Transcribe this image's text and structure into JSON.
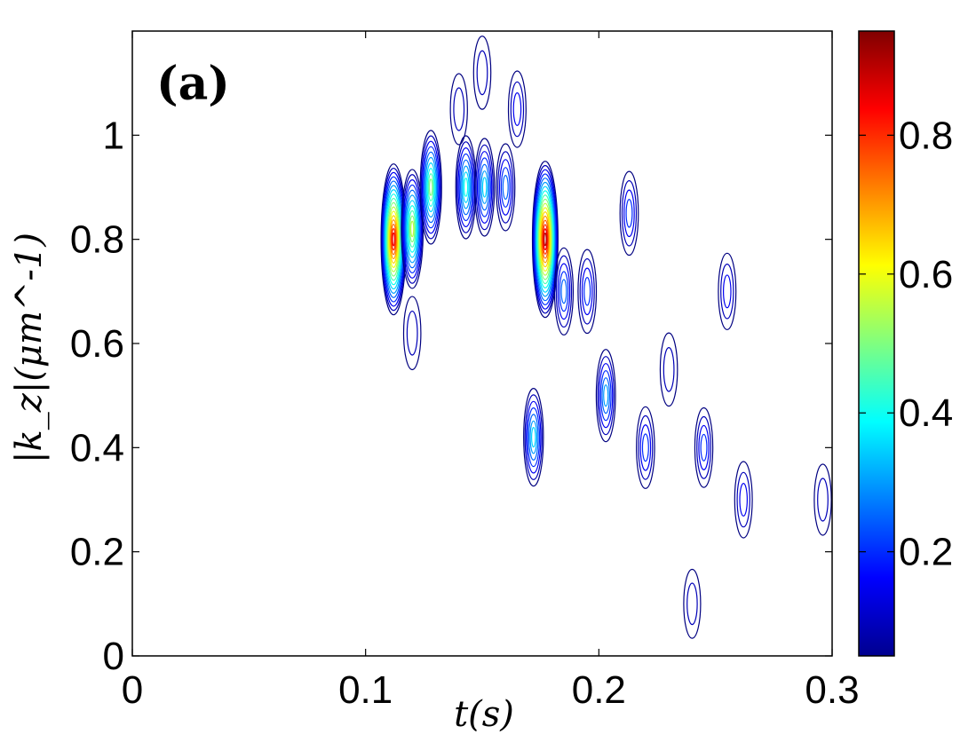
{
  "chart_data": {
    "type": "heatmap",
    "subtype": "contour",
    "panel_label": "(a)",
    "xlabel": "t(s)",
    "ylabel": "|k_z|(μm^-1)",
    "xlim": [
      0,
      0.3
    ],
    "ylim": [
      0,
      1.2
    ],
    "x_ticks": [
      "0",
      "0.1",
      "0.2",
      "0.3"
    ],
    "x_tick_values": [
      0,
      0.1,
      0.2,
      0.3
    ],
    "y_ticks": [
      "0",
      "0.2",
      "0.4",
      "0.6",
      "0.8",
      "1"
    ],
    "y_tick_values": [
      0,
      0.2,
      0.4,
      0.6,
      0.8,
      1.0
    ],
    "colorbar": {
      "colormap": "jet",
      "range": [
        0.05,
        0.95
      ],
      "ticks": [
        "0.2",
        "0.4",
        "0.6",
        "0.8"
      ],
      "tick_values": [
        0.2,
        0.4,
        0.6,
        0.8
      ]
    },
    "peaks": [
      {
        "t": 0.112,
        "k": 0.8,
        "value": 0.85
      },
      {
        "t": 0.12,
        "k": 0.82,
        "value": 0.55
      },
      {
        "t": 0.128,
        "k": 0.9,
        "value": 0.5
      },
      {
        "t": 0.143,
        "k": 0.9,
        "value": 0.4
      },
      {
        "t": 0.151,
        "k": 0.9,
        "value": 0.35
      },
      {
        "t": 0.177,
        "k": 0.8,
        "value": 0.9
      },
      {
        "t": 0.172,
        "k": 0.42,
        "value": 0.35
      },
      {
        "t": 0.16,
        "k": 0.9,
        "value": 0.25
      },
      {
        "t": 0.185,
        "k": 0.7,
        "value": 0.25
      },
      {
        "t": 0.195,
        "k": 0.7,
        "value": 0.22
      },
      {
        "t": 0.203,
        "k": 0.5,
        "value": 0.3
      },
      {
        "t": 0.213,
        "k": 0.85,
        "value": 0.22
      },
      {
        "t": 0.22,
        "k": 0.4,
        "value": 0.2
      },
      {
        "t": 0.245,
        "k": 0.4,
        "value": 0.18
      },
      {
        "t": 0.255,
        "k": 0.7,
        "value": 0.15
      },
      {
        "t": 0.262,
        "k": 0.3,
        "value": 0.15
      },
      {
        "t": 0.165,
        "k": 1.05,
        "value": 0.15
      },
      {
        "t": 0.15,
        "k": 1.12,
        "value": 0.12
      },
      {
        "t": 0.14,
        "k": 1.05,
        "value": 0.1
      },
      {
        "t": 0.23,
        "k": 0.55,
        "value": 0.12
      },
      {
        "t": 0.24,
        "k": 0.1,
        "value": 0.08
      },
      {
        "t": 0.296,
        "k": 0.3,
        "value": 0.1
      },
      {
        "t": 0.12,
        "k": 0.62,
        "value": 0.12
      }
    ]
  }
}
